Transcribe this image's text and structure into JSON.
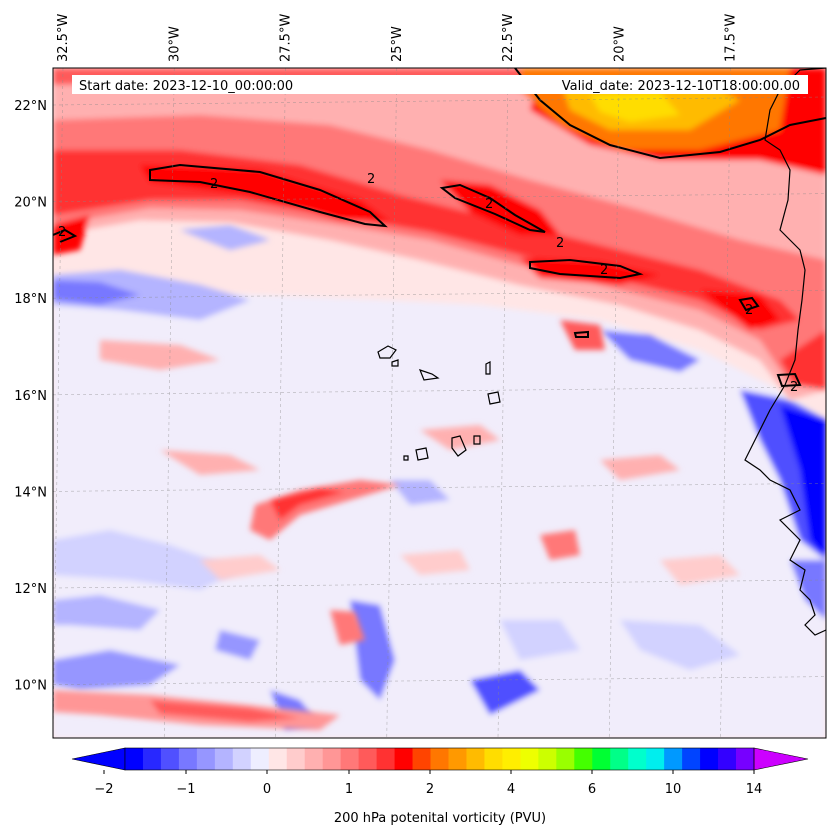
{
  "header": {
    "start_date": "Start date: 2023-12-10_00:00:00",
    "valid_date": "Valid_date: 2023-12-10T18:00:00.00"
  },
  "longitude_labels": [
    "32.5°W",
    "30°W",
    "27.5°W",
    "25°W",
    "22.5°W",
    "20°W",
    "17.5°W"
  ],
  "longitude_values": [
    -32.5,
    -30,
    -27.5,
    -25,
    -22.5,
    -20,
    -17.5
  ],
  "latitude_labels": [
    "22°N",
    "20°N",
    "18°N",
    "16°N",
    "14°N",
    "12°N",
    "10°N"
  ],
  "latitude_values": [
    22,
    20,
    18,
    16,
    14,
    12,
    10
  ],
  "contour_level_label": "2",
  "colorbar": {
    "label": "200 hPa potenital vorticity (PVU)",
    "tick_labels": [
      "−2",
      "−1",
      "0",
      "1",
      "2",
      "4",
      "6",
      "10",
      "14"
    ],
    "colors": [
      "#0000ff",
      "#2828ff",
      "#5050ff",
      "#7878ff",
      "#9696ff",
      "#b4b4ff",
      "#d2d2ff",
      "#eeeeff",
      "#ffe6e6",
      "#ffcccc",
      "#ffb0b0",
      "#ff9696",
      "#ff7878",
      "#ff5a5a",
      "#ff3232",
      "#ff0000",
      "#ff4400",
      "#ff7700",
      "#ff9900",
      "#ffbb00",
      "#ffdd00",
      "#ffee00",
      "#eeff00",
      "#ccff00",
      "#99ff00",
      "#44ff00",
      "#00ff33",
      "#00ff88",
      "#00ffcc",
      "#00eeee",
      "#0099ff",
      "#0044ff",
      "#0000ff",
      "#3300ff",
      "#7700ff"
    ],
    "under_color": "#0000ff",
    "over_color": "#cc00ff"
  },
  "field_colors": {
    "background": "#ffe6e6",
    "light_blue": "#d2d2ff",
    "mid_blue": "#9696ff",
    "deep_blue": "#0000ff",
    "pale": "#eeeeff",
    "pink": "#ffb0b0",
    "red": "#ff3232",
    "deep_red": "#ff0000",
    "orange": "#ff7700",
    "yellow": "#ffcc00",
    "coast": "#000000"
  }
}
